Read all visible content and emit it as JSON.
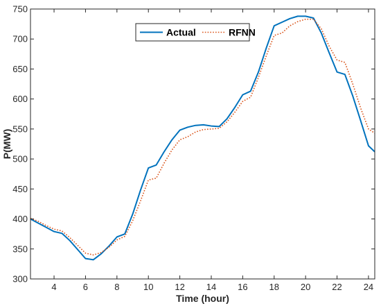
{
  "chart_data": {
    "type": "line",
    "xlabel": "Time (hour)",
    "ylabel": "P(MW)",
    "xlim": [
      2.5,
      24.4
    ],
    "ylim": [
      300,
      750
    ],
    "xticks": [
      4,
      6,
      8,
      10,
      12,
      14,
      16,
      18,
      20,
      22,
      24
    ],
    "yticks": [
      300,
      350,
      400,
      450,
      500,
      550,
      600,
      650,
      700,
      750
    ],
    "grid": false,
    "legend": "top-center",
    "series": [
      {
        "name": "Actual",
        "color": "#0072BD",
        "style": "solid",
        "x": [
          2.5,
          3.0,
          3.5,
          4.0,
          4.5,
          5.0,
          5.5,
          6.0,
          6.5,
          7.0,
          7.5,
          8.0,
          8.5,
          9.0,
          9.5,
          10.0,
          10.5,
          11.0,
          11.5,
          12.0,
          12.5,
          13.0,
          13.5,
          14.0,
          14.5,
          15.0,
          15.5,
          16.0,
          16.5,
          17.0,
          17.5,
          18.0,
          18.5,
          19.0,
          19.5,
          20.0,
          20.5,
          21.0,
          21.5,
          22.0,
          22.5,
          23.0,
          23.5,
          24.0,
          24.4
        ],
        "values": [
          400,
          393,
          386,
          379,
          376,
          364,
          349,
          334,
          332,
          342,
          355,
          370,
          375,
          408,
          448,
          485,
          490,
          512,
          532,
          548,
          553,
          556,
          557,
          555,
          554,
          567,
          586,
          607,
          613,
          645,
          685,
          722,
          728,
          734,
          738,
          738,
          735,
          710,
          677,
          645,
          641,
          605,
          564,
          522,
          512
        ]
      },
      {
        "name": "RFNN",
        "color": "#D95319",
        "style": "dotted",
        "x": [
          2.5,
          3.0,
          3.5,
          4.0,
          4.5,
          5.0,
          5.5,
          6.0,
          6.5,
          7.0,
          7.5,
          8.0,
          8.5,
          9.0,
          9.5,
          10.0,
          10.5,
          11.0,
          11.5,
          12.0,
          12.5,
          13.0,
          13.5,
          14.0,
          14.5,
          15.0,
          15.5,
          16.0,
          16.5,
          17.0,
          17.5,
          18.0,
          18.5,
          19.0,
          19.5,
          20.0,
          20.5,
          21.0,
          21.5,
          22.0,
          22.5,
          23.0,
          23.5,
          24.0,
          24.4
        ],
        "values": [
          401,
          396,
          389,
          383,
          380,
          369,
          356,
          343,
          340,
          344,
          353,
          365,
          371,
          397,
          430,
          465,
          468,
          493,
          515,
          532,
          537,
          545,
          549,
          550,
          551,
          562,
          578,
          596,
          603,
          636,
          672,
          706,
          710,
          722,
          729,
          733,
          733,
          717,
          688,
          665,
          661,
          625,
          585,
          550,
          543
        ]
      }
    ]
  }
}
